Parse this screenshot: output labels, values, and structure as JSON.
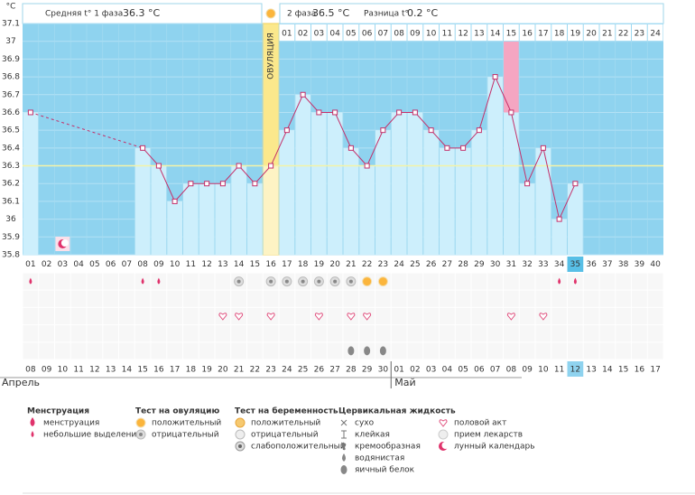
{
  "header": {
    "phase1_label": "Средняя t° 1 фаза",
    "phase1_value": "36.3 °C",
    "phase2_label": "2 фаза",
    "phase2_value": "36.5 °C",
    "diff_label": "Разница t°",
    "diff_value": "0.2 °C"
  },
  "chart_data": {
    "type": "line",
    "y_label": "°C",
    "categories": [
      "01",
      "02",
      "03",
      "04",
      "05",
      "06",
      "07",
      "08",
      "09",
      "10",
      "11",
      "12",
      "13",
      "14",
      "15",
      "16",
      "17",
      "18",
      "19",
      "20",
      "21",
      "22",
      "23",
      "24",
      "25",
      "26",
      "27",
      "28",
      "29",
      "30",
      "31",
      "32",
      "33",
      "34",
      "35",
      "36",
      "37",
      "38",
      "39",
      "40"
    ],
    "luteal_days": [
      "01",
      "02",
      "03",
      "04",
      "05",
      "06",
      "07",
      "08",
      "09",
      "10",
      "11",
      "12",
      "13",
      "14",
      "15",
      "16",
      "17",
      "18",
      "19",
      "20",
      "21",
      "22",
      "23",
      "24"
    ],
    "values": [
      36.6,
      null,
      null,
      null,
      null,
      null,
      null,
      36.4,
      36.3,
      36.1,
      36.2,
      36.2,
      36.2,
      36.3,
      36.2,
      36.3,
      36.5,
      36.7,
      36.6,
      36.6,
      36.4,
      36.3,
      36.5,
      36.6,
      36.6,
      36.5,
      36.4,
      36.4,
      36.5,
      36.8,
      36.6,
      36.2,
      36.4,
      36,
      36.2,
      null,
      null,
      null,
      null,
      null
    ],
    "color": "#c4306a",
    "ylim": [
      35.8,
      37.1
    ],
    "yticks": [
      35.8,
      35.9,
      36,
      36.1,
      36.2,
      36.3,
      36.4,
      36.5,
      36.6,
      36.7,
      36.8,
      36.9,
      37,
      37.1
    ],
    "cover_line": 36.3,
    "ovulation_day": "16",
    "ovulation_label": "ОВУЛЯЦИЯ",
    "marked_day": "31",
    "today": "35"
  },
  "dates": [
    {
      "text": "08",
      "weekend": false
    },
    {
      "text": "09",
      "weekend": false
    },
    {
      "text": "10",
      "weekend": false
    },
    {
      "text": "11",
      "weekend": false
    },
    {
      "text": "12",
      "weekend": true
    },
    {
      "text": "13",
      "weekend": true
    },
    {
      "text": "14",
      "weekend": false
    },
    {
      "text": "15",
      "weekend": false
    },
    {
      "text": "16",
      "weekend": false
    },
    {
      "text": "17",
      "weekend": false
    },
    {
      "text": "18",
      "weekend": false
    },
    {
      "text": "19",
      "weekend": true
    },
    {
      "text": "20",
      "weekend": true
    },
    {
      "text": "21",
      "weekend": false
    },
    {
      "text": "22",
      "weekend": false
    },
    {
      "text": "23",
      "weekend": false
    },
    {
      "text": "24",
      "weekend": false
    },
    {
      "text": "25",
      "weekend": false
    },
    {
      "text": "26",
      "weekend": true
    },
    {
      "text": "27",
      "weekend": true
    },
    {
      "text": "28",
      "weekend": false
    },
    {
      "text": "29",
      "weekend": false
    },
    {
      "text": "30",
      "weekend": false
    },
    {
      "text": "01",
      "weekend": false
    },
    {
      "text": "02",
      "weekend": false
    },
    {
      "text": "03",
      "weekend": true
    },
    {
      "text": "04",
      "weekend": true
    },
    {
      "text": "05",
      "weekend": false
    },
    {
      "text": "06",
      "weekend": false
    },
    {
      "text": "07",
      "weekend": false
    },
    {
      "text": "08",
      "weekend": false
    },
    {
      "text": "09",
      "weekend": false
    },
    {
      "text": "10",
      "weekend": true
    },
    {
      "text": "11",
      "weekend": true
    },
    {
      "text": "12",
      "weekend": false
    },
    {
      "text": "13",
      "weekend": false
    },
    {
      "text": "14",
      "weekend": false
    },
    {
      "text": "15",
      "weekend": false
    },
    {
      "text": "16",
      "weekend": false
    },
    {
      "text": "17",
      "weekend": true
    }
  ],
  "months": [
    {
      "name": "Апрель"
    },
    {
      "name": "Май",
      "first_date": "01"
    }
  ],
  "legend": [
    {
      "title": "Менструация",
      "items": [
        "менструация",
        "небольшие выделения"
      ]
    },
    {
      "title": "Тест на овуляцию",
      "items": [
        "положительный",
        "отрицательный"
      ]
    },
    {
      "title": "Тест на беременность",
      "items": [
        "положительный",
        "отрицательный",
        "слабоположительный"
      ]
    },
    {
      "title": "Цервикальная жидкость",
      "items": [
        "сухо",
        "клейкая",
        "кремообразная",
        "водянистая",
        "яичный белок"
      ]
    },
    {
      "items": [
        "половой акт",
        "прием лекарств",
        "лунный календарь"
      ]
    }
  ],
  "symbols": [
    {
      "legend_item": "legend.0.items.1",
      "days": [
        "01",
        "08",
        "09",
        "34",
        "35"
      ]
    },
    {
      "legend_item": "legend.1.items.1",
      "days": [
        "14",
        "16",
        "17",
        "18",
        "19",
        "20",
        "21"
      ]
    },
    {
      "legend_item": "legend.1.items.0",
      "days": [
        "22",
        "23"
      ]
    },
    {
      "legend_item": "legend.4.items.0",
      "days": [
        "13",
        "14",
        "16",
        "19",
        "21",
        "22",
        "31",
        "33"
      ]
    },
    {
      "legend_item": "legend.3.items.4",
      "days": [
        "21",
        "22",
        "23"
      ]
    },
    {
      "legend_item": "legend.4.items.2",
      "days": [
        "03"
      ]
    }
  ]
}
